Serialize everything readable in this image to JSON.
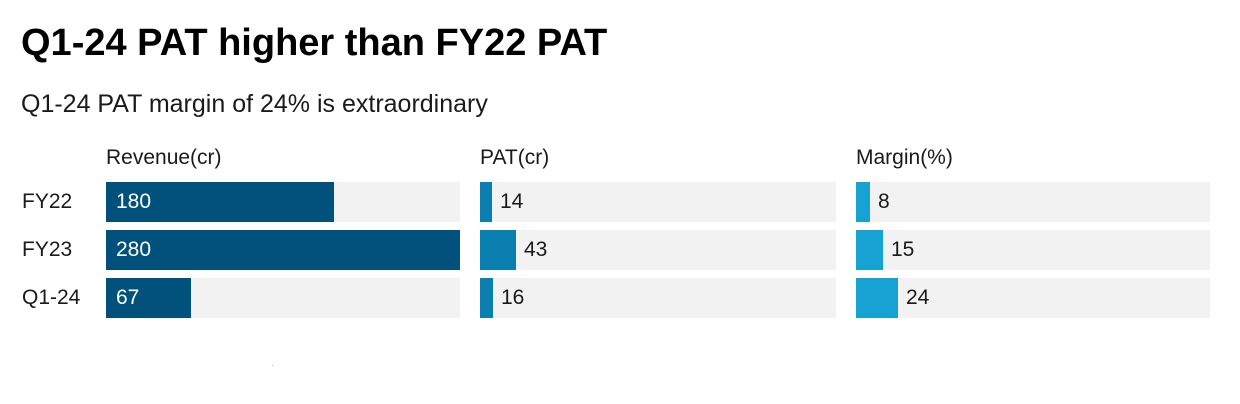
{
  "title": "Q1-24 PAT higher than FY22 PAT",
  "subtitle": "Q1-24 PAT margin of 24% is extraordinary",
  "colors": {
    "revenue": "#00527c",
    "pat": "#0b7fb0",
    "margin": "#16a3d4",
    "track": "#f2f2f2"
  },
  "chart_data": {
    "type": "bar",
    "orientation": "horizontal",
    "categories": [
      "FY22",
      "FY23",
      "Q1-24"
    ],
    "series": [
      {
        "name": "Revenue(cr)",
        "values": [
          180,
          280,
          67
        ],
        "xlim": [
          0,
          280
        ],
        "label_position": "inside"
      },
      {
        "name": "PAT(cr)",
        "values": [
          14,
          43,
          16
        ],
        "xlim": [
          0,
          430
        ],
        "label_position": "outside"
      },
      {
        "name": "Margin(%)",
        "values": [
          8,
          15,
          24
        ],
        "xlim": [
          0,
          200
        ],
        "label_position": "outside"
      }
    ]
  }
}
